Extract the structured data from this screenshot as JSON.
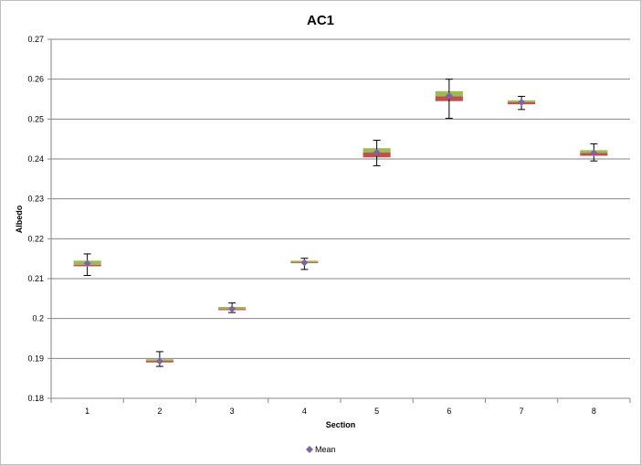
{
  "chart_data": {
    "type": "box",
    "title": "AC1",
    "xlabel": "Section",
    "ylabel": "Albedo",
    "ylim": [
      0.18,
      0.27
    ],
    "yticks": [
      0.18,
      0.19,
      0.2,
      0.21,
      0.22,
      0.23,
      0.24,
      0.25,
      0.26,
      0.27
    ],
    "ytick_labels": [
      "0.18",
      "0.19",
      "0.2",
      "0.21",
      "0.22",
      "0.23",
      "0.24",
      "0.25",
      "0.26",
      "0.27"
    ],
    "grid": true,
    "legend": {
      "placement": "bottom",
      "entries": [
        "Mean"
      ]
    },
    "categories": [
      "1",
      "2",
      "3",
      "4",
      "5",
      "6",
      "7",
      "8"
    ],
    "series": [
      {
        "name": "Mean",
        "values": [
          0.2138,
          0.1893,
          0.2024,
          0.214,
          0.2416,
          0.2558,
          0.2542,
          0.2415
        ]
      }
    ],
    "boxes": [
      {
        "min": 0.2108,
        "q1": 0.2131,
        "median": 0.2135,
        "q3": 0.2145,
        "max": 0.2162
      },
      {
        "min": 0.188,
        "q1": 0.189,
        "median": 0.1894,
        "q3": 0.1898,
        "max": 0.1917
      },
      {
        "min": 0.2015,
        "q1": 0.2021,
        "median": 0.2024,
        "q3": 0.2029,
        "max": 0.2039
      },
      {
        "min": 0.2123,
        "q1": 0.2139,
        "median": 0.2141,
        "q3": 0.2145,
        "max": 0.2151
      },
      {
        "min": 0.2383,
        "q1": 0.2404,
        "median": 0.2416,
        "q3": 0.2427,
        "max": 0.2447
      },
      {
        "min": 0.2502,
        "q1": 0.2545,
        "median": 0.2557,
        "q3": 0.257,
        "max": 0.26
      },
      {
        "min": 0.2524,
        "q1": 0.2537,
        "median": 0.2542,
        "q3": 0.2547,
        "max": 0.2557
      },
      {
        "min": 0.2395,
        "q1": 0.2408,
        "median": 0.2415,
        "q3": 0.2422,
        "max": 0.2438
      }
    ],
    "colors": {
      "box_lower": "#c0504d",
      "box_upper": "#9bbb59",
      "mean_marker": "#8064a2",
      "whisker": "#000000",
      "grid": "#868686",
      "axis": "#868686"
    }
  }
}
